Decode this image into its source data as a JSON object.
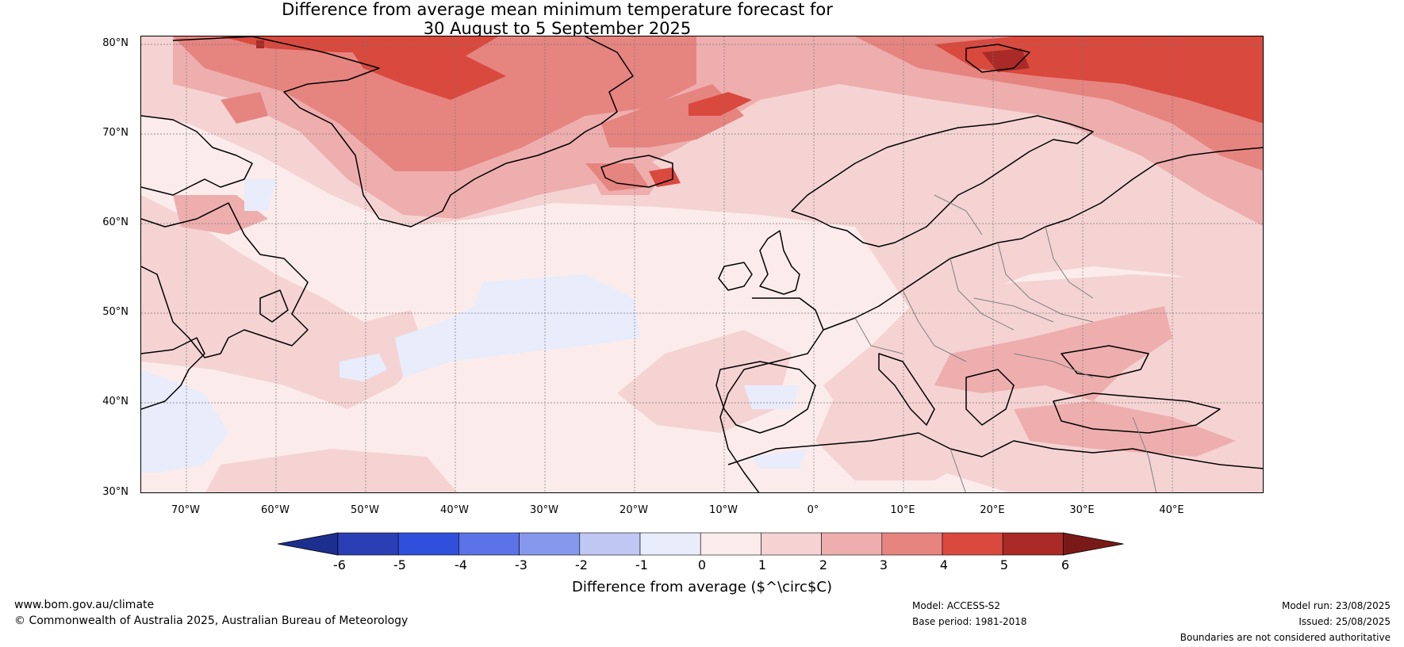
{
  "title_line1": "Difference from average mean minimum temperature forecast for",
  "title_line2": "30 August to 5 September 2025",
  "lat_labels": [
    "80°N",
    "70°N",
    "60°N",
    "50°N",
    "40°N",
    "30°N"
  ],
  "lon_labels": [
    "70°W",
    "60°W",
    "50°W",
    "40°W",
    "30°W",
    "20°W",
    "10°W",
    "0°",
    "10°E",
    "20°E",
    "30°E",
    "40°E"
  ],
  "colorbar": {
    "ticks": [
      "-6",
      "-5",
      "-4",
      "-3",
      "-2",
      "-1",
      "0",
      "1",
      "2",
      "3",
      "4",
      "5",
      "6"
    ],
    "colors": [
      "#1c2f8f",
      "#2b3fb5",
      "#3050dc",
      "#5b73e6",
      "#8598ec",
      "#bfc8f3",
      "#e8ecfb",
      "#fbeceb",
      "#f5d3d3",
      "#eeaeae",
      "#e68480",
      "#d9493e",
      "#a92a26",
      "#7a1a18"
    ],
    "label": "Difference from average ($^\\circ$C)"
  },
  "footer": {
    "website": "www.bom.gov.au/climate",
    "copyright": "© Commonwealth of Australia 2025, Australian Bureau of Meteorology",
    "model": "Model: ACCESS-S2",
    "base_period": "Base period: 1981-2018",
    "model_run": "Model run: 23/08/2025",
    "issued": "Issued: 25/08/2025",
    "disclaimer": "Boundaries are not considered authoritative"
  }
}
